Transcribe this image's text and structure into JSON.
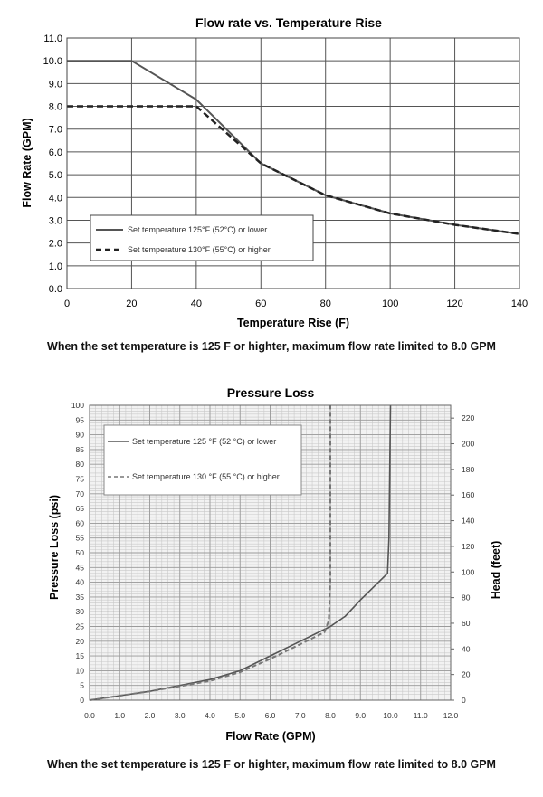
{
  "chart_data": [
    {
      "type": "line",
      "title": "Flow rate vs. Temperature Rise",
      "xlabel": "Temperature Rise (F)",
      "ylabel": "Flow Rate (GPM)",
      "xlim": [
        0,
        140
      ],
      "ylim": [
        0,
        11
      ],
      "xticks": [
        "0",
        "20",
        "40",
        "60",
        "80",
        "100",
        "120",
        "140"
      ],
      "yticks": [
        "0.0",
        "1.0",
        "2.0",
        "3.0",
        "4.0",
        "5.0",
        "6.0",
        "7.0",
        "8.0",
        "9.0",
        "10.0",
        "11.0"
      ],
      "grid": true,
      "legend_position": "bottom-left",
      "series": [
        {
          "name": "Set temperature 125°F (52°C) or lower",
          "style": "solid",
          "color": "#555555",
          "x": [
            0,
            20,
            40,
            60,
            80,
            100,
            120,
            140
          ],
          "y": [
            10.0,
            10.0,
            8.3,
            5.5,
            4.1,
            3.3,
            2.8,
            2.4
          ]
        },
        {
          "name": "Set temperature 130°F (55°C) or higher",
          "style": "dashed",
          "color": "#222222",
          "x": [
            0,
            40,
            60,
            80,
            100,
            120,
            140
          ],
          "y": [
            8.0,
            8.0,
            5.5,
            4.1,
            3.3,
            2.8,
            2.4
          ]
        }
      ]
    },
    {
      "type": "line",
      "title": "Pressure Loss",
      "xlabel": "Flow Rate (GPM)",
      "ylabel": "Pressure Loss  (psi)",
      "y2label": "Head (feet)",
      "xlim": [
        0,
        12
      ],
      "ylim": [
        0,
        100
      ],
      "y2lim": [
        0,
        230
      ],
      "xticks": [
        "0.0",
        "1.0",
        "2.0",
        "3.0",
        "4.0",
        "5.0",
        "6.0",
        "7.0",
        "8.0",
        "9.0",
        "10.0",
        "11.0",
        "12.0"
      ],
      "yticks": [
        "0",
        "5",
        "10",
        "15",
        "20",
        "25",
        "30",
        "35",
        "40",
        "45",
        "50",
        "55",
        "60",
        "65",
        "70",
        "75",
        "80",
        "85",
        "90",
        "95",
        "100"
      ],
      "y2ticks": [
        "0",
        "20",
        "40",
        "60",
        "80",
        "100",
        "120",
        "140",
        "160",
        "180",
        "200",
        "220"
      ],
      "grid": true,
      "legend_position": "top-left",
      "series": [
        {
          "name": "Set temperature 125 °F (52 °C) or lower",
          "style": "solid",
          "color": "#555555",
          "x": [
            0,
            2,
            4,
            5,
            6,
            7,
            8,
            8.5,
            9,
            9.9,
            9.95,
            10.0
          ],
          "y": [
            0,
            3,
            7,
            10,
            15,
            20,
            25,
            28.5,
            34,
            43,
            55,
            100
          ]
        },
        {
          "name": "Set temperature 130 °F (55 °C) or higher",
          "style": "dashed",
          "color": "#777777",
          "x": [
            0,
            2,
            4,
            5,
            6,
            7,
            7.8,
            7.95,
            8.0,
            8.0
          ],
          "y": [
            0,
            3,
            6.5,
            9.5,
            14,
            19,
            23,
            27,
            40,
            100
          ]
        }
      ]
    }
  ],
  "captions": {
    "top": "When the set temperature is 125  F or highter, maximum flow rate limited to 8.0 GPM",
    "bottom": "When the set temperature is 125  F or highter, maximum flow rate limited to 8.0 GPM"
  }
}
